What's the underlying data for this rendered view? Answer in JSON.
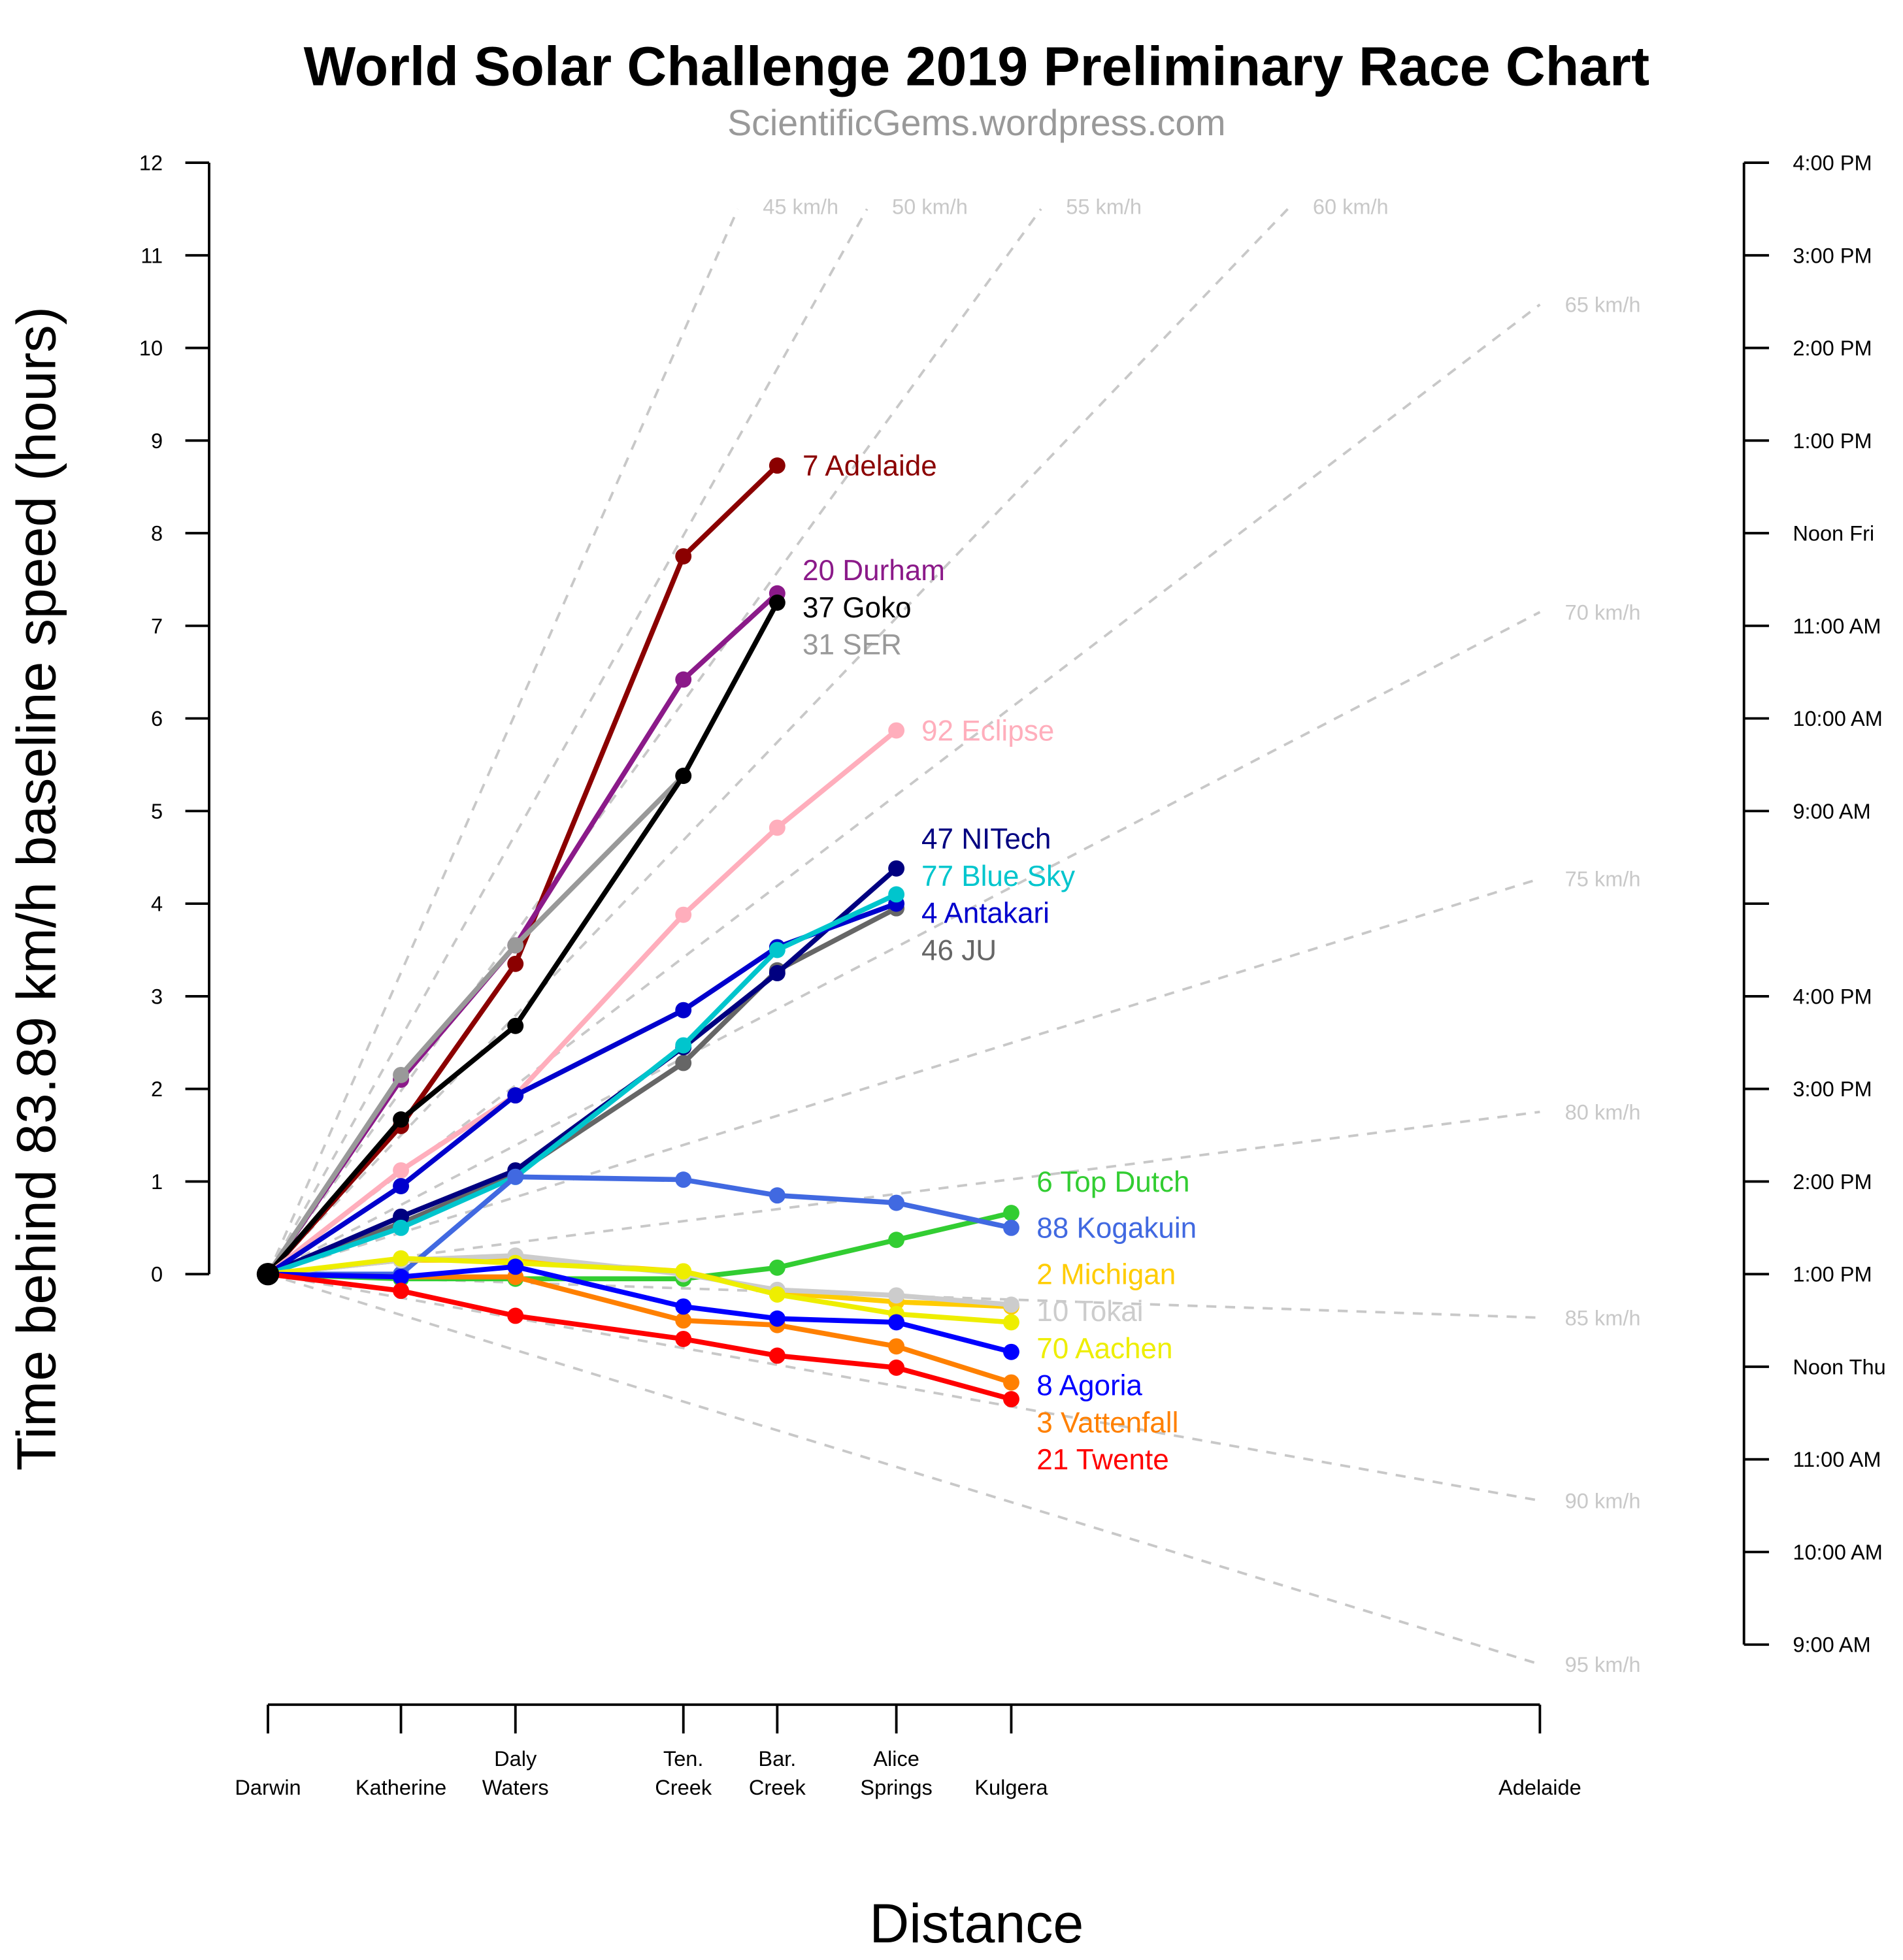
{
  "chart_data": {
    "type": "line",
    "title": "World Solar Challenge 2019 Preliminary Race Chart",
    "subtitle": "ScientificGems.wordpress.com",
    "xlabel": "Distance",
    "ylabel": "Time behind 83.89 km/h baseline speed (hours)",
    "baseline_speed_kmh": 83.89,
    "ylim": [
      -4.5,
      12
    ],
    "y_ticks": [
      0,
      1,
      2,
      3,
      4,
      5,
      6,
      7,
      8,
      9,
      10,
      11,
      12
    ],
    "x_stops": [
      {
        "name": "Darwin",
        "km": 0,
        "label": [
          "Darwin"
        ]
      },
      {
        "name": "Katherine",
        "km": 316,
        "label": [
          "Katherine"
        ]
      },
      {
        "name": "Daly Waters",
        "km": 588,
        "label": [
          "Daly",
          "Waters"
        ]
      },
      {
        "name": "Tennant Creek",
        "km": 987,
        "label": [
          "Ten.",
          "Creek"
        ]
      },
      {
        "name": "Barrow Creek",
        "km": 1210,
        "label": [
          "Bar.",
          "Creek"
        ]
      },
      {
        "name": "Alice Springs",
        "km": 1493,
        "label": [
          "Alice",
          "Springs"
        ]
      },
      {
        "name": "Kulgera",
        "km": 1766,
        "label": [
          "Kulgera"
        ]
      },
      {
        "name": "Adelaide",
        "km": 3022,
        "label": [
          "Adelaide"
        ]
      }
    ],
    "right_axis": [
      {
        "y": 12,
        "label": "4:00 PM"
      },
      {
        "y": 11,
        "label": "3:00 PM"
      },
      {
        "y": 10,
        "label": "2:00 PM"
      },
      {
        "y": 9,
        "label": "1:00 PM"
      },
      {
        "y": 8,
        "label": "Noon Fri"
      },
      {
        "y": 7,
        "label": "11:00 AM"
      },
      {
        "y": 6,
        "label": "10:00 AM"
      },
      {
        "y": 5,
        "label": "9:00 AM"
      },
      {
        "y": 4,
        "label": ""
      },
      {
        "y": 3,
        "label": "4:00 PM"
      },
      {
        "y": 2,
        "label": "3:00 PM"
      },
      {
        "y": 1,
        "label": "2:00 PM"
      },
      {
        "y": 0,
        "label": "1:00 PM"
      },
      {
        "y": -1,
        "label": "Noon Thu"
      },
      {
        "y": -2,
        "label": "11:00 AM"
      },
      {
        "y": -3,
        "label": "10:00 AM"
      },
      {
        "y": -4,
        "label": "9:00 AM"
      }
    ],
    "speed_lines": [
      {
        "kmh": 45,
        "label": "45 km/h"
      },
      {
        "kmh": 50,
        "label": "50 km/h"
      },
      {
        "kmh": 55,
        "label": "55 km/h"
      },
      {
        "kmh": 60,
        "label": "60 km/h"
      },
      {
        "kmh": 65,
        "label": "65 km/h"
      },
      {
        "kmh": 70,
        "label": "70 km/h"
      },
      {
        "kmh": 75,
        "label": "75 km/h"
      },
      {
        "kmh": 80,
        "label": "80 km/h"
      },
      {
        "kmh": 85,
        "label": "85 km/h"
      },
      {
        "kmh": 90,
        "label": "90 km/h"
      },
      {
        "kmh": 95,
        "label": "95 km/h"
      }
    ],
    "series": [
      {
        "name": "7 Adelaide",
        "color": "#8B0000",
        "values": [
          0,
          1.6,
          3.35,
          7.75,
          8.73
        ]
      },
      {
        "name": "20 Durham",
        "color": "#8B1A89",
        "values": [
          0,
          2.1,
          3.55,
          6.42,
          7.35
        ]
      },
      {
        "name": "31 SER",
        "color": "#999999",
        "values": [
          0,
          2.15,
          3.55,
          5.38
        ]
      },
      {
        "name": "37 Goko",
        "color": "#000000",
        "values": [
          0,
          1.67,
          2.68,
          5.38,
          7.25
        ]
      },
      {
        "name": "92 Eclipse",
        "color": "#FFAEBC",
        "values": [
          0,
          1.12,
          1.93,
          3.88,
          4.82,
          5.87
        ]
      },
      {
        "name": "46 JU",
        "color": "#666666",
        "values": [
          0,
          0.55,
          1.08,
          2.28,
          3.28,
          3.95
        ]
      },
      {
        "name": "47 NITech",
        "color": "#000080",
        "values": [
          0,
          0.62,
          1.12,
          2.45,
          3.25,
          4.38
        ]
      },
      {
        "name": "4 Antakari",
        "color": "#0000CD",
        "values": [
          0,
          0.95,
          1.93,
          2.85,
          3.53,
          4.0
        ]
      },
      {
        "name": "77 Blue Sky",
        "color": "#00C5CD",
        "values": [
          0,
          0.5,
          1.05,
          2.47,
          3.5,
          4.1
        ]
      },
      {
        "name": "6 Top Dutch",
        "color": "#32CD32",
        "values": [
          0,
          -0.05,
          -0.05,
          -0.05,
          0.07,
          0.37,
          0.66
        ]
      },
      {
        "name": "88 Kogakuin",
        "color": "#4169E1",
        "values": [
          0,
          0,
          1.05,
          1.02,
          0.85,
          0.77,
          0.5
        ]
      },
      {
        "name": "2 Michigan",
        "color": "#FFCC00",
        "values": [
          0,
          0.15,
          0.15,
          0.03,
          -0.2,
          -0.3,
          -0.35
        ]
      },
      {
        "name": "10 Tokai",
        "color": "#CCCCCC",
        "values": [
          0,
          0.15,
          0.2,
          0.0,
          -0.17,
          -0.23,
          -0.33
        ]
      },
      {
        "name": "70 Aachen",
        "color": "#EEEE00",
        "values": [
          0,
          0.17,
          0.12,
          0.03,
          -0.22,
          -0.43,
          -0.52
        ]
      },
      {
        "name": "3 Vattenfall",
        "color": "#FF8000",
        "values": [
          0,
          -0.03,
          -0.03,
          -0.5,
          -0.55,
          -0.78,
          -1.17
        ]
      },
      {
        "name": "8 Agoria",
        "color": "#0000FF",
        "values": [
          0,
          -0.03,
          0.08,
          -0.35,
          -0.48,
          -0.52,
          -0.84
        ]
      },
      {
        "name": "21 Twente",
        "color": "#FF0000",
        "values": [
          0,
          -0.18,
          -0.45,
          -0.7,
          -0.88,
          -1.01,
          -1.35
        ]
      }
    ]
  }
}
